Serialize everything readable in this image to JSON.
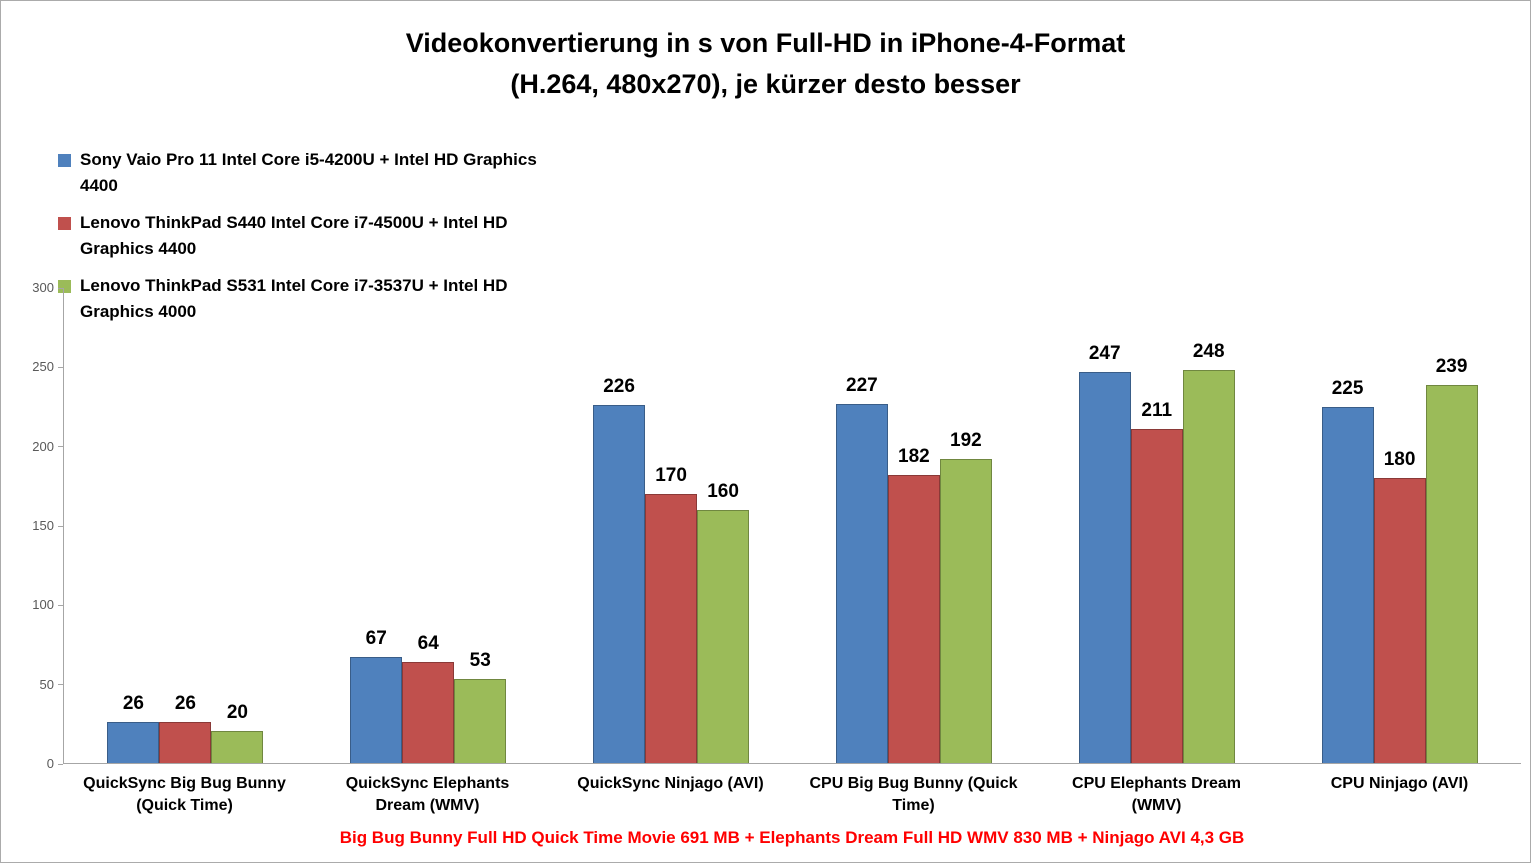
{
  "chart_data": {
    "type": "bar",
    "title": "Videokonvertierung in s von Full-HD in iPhone-4-Format (H.264, 480x270), je kürzer desto besser",
    "title_lines": [
      "Videokonvertierung in s von Full-HD in iPhone-4-Format",
      "(H.264, 480x270), je kürzer desto besser"
    ],
    "xlabel": "",
    "ylabel": "",
    "unit": "s",
    "ylim": [
      0,
      300
    ],
    "yticks": [
      0,
      50,
      100,
      150,
      200,
      250,
      300
    ],
    "grid": false,
    "data_labels": true,
    "legend_position": "top-left",
    "axis_color": "#a6a6a6",
    "categories": [
      "QuickSync Big Bug Bunny (Quick Time)",
      "QuickSync Elephants Dream (WMV)",
      "QuickSync Ninjago (AVI)",
      "CPU Big Bug Bunny (Quick Time)",
      "CPU Elephants Dream (WMV)",
      "CPU Ninjago (AVI)"
    ],
    "series": [
      {
        "name": "Sony Vaio Pro 11 Intel Core i5-4200U + Intel HD Graphics 4400",
        "color": "#4F81BD",
        "values": [
          26,
          67,
          226,
          227,
          247,
          225
        ]
      },
      {
        "name": "Lenovo ThinkPad S440 Intel Core i7-4500U + Intel HD Graphics 4400",
        "color": "#C0504D",
        "values": [
          26,
          64,
          170,
          182,
          211,
          180
        ]
      },
      {
        "name": "Lenovo ThinkPad S531 Intel Core i7-3537U + Intel HD Graphics 4000",
        "color": "#9BBB59",
        "values": [
          20,
          53,
          160,
          192,
          248,
          239
        ]
      }
    ],
    "footnote": "Big Bug Bunny Full HD Quick Time Movie 691 MB + Elephants Dream Full HD WMV 830 MB + Ninjago AVI 4,3 GB",
    "footnote_color": "#FF0000"
  }
}
